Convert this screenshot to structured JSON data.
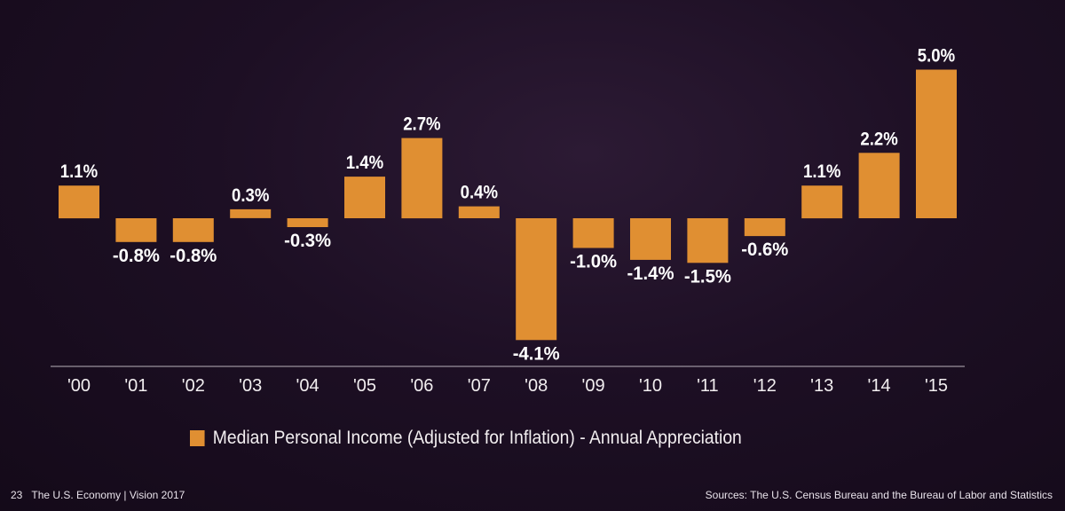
{
  "chart_data": {
    "type": "bar",
    "categories": [
      "'00",
      "'01",
      "'02",
      "'03",
      "'04",
      "'05",
      "'06",
      "'07",
      "'08",
      "'09",
      "'10",
      "'11",
      "'12",
      "'13",
      "'14",
      "'15"
    ],
    "series": [
      {
        "name": "Median Personal Income (Adjusted for Inflation) - Annual Appreciation",
        "values": [
          1.1,
          -0.8,
          -0.8,
          0.3,
          -0.3,
          1.4,
          2.7,
          0.4,
          -4.1,
          -1.0,
          -1.4,
          -1.5,
          -0.6,
          1.1,
          2.2,
          5.0
        ]
      }
    ],
    "data_labels": [
      "1.1%",
      "-0.8%",
      "-0.8%",
      "0.3%",
      "-0.3%",
      "1.4%",
      "2.7%",
      "0.4%",
      "-4.1%",
      "-1.0%",
      "-1.4%",
      "-1.5%",
      "-0.6%",
      "1.1%",
      "2.2%",
      "5.0%"
    ],
    "ylim": [
      -4.5,
      5.0
    ],
    "grid": false,
    "legend_position": "bottom",
    "bar_color": "#e08f32",
    "axis_color": "#b9b2bb"
  },
  "legend": {
    "label": "Median Personal Income (Adjusted for Inflation) - Annual Appreciation"
  },
  "footer": {
    "page_number": "23",
    "publication": "The U.S. Economy | Vision 2017",
    "sources": "Sources: The U.S. Census Bureau and the Bureau of Labor and Statistics"
  }
}
